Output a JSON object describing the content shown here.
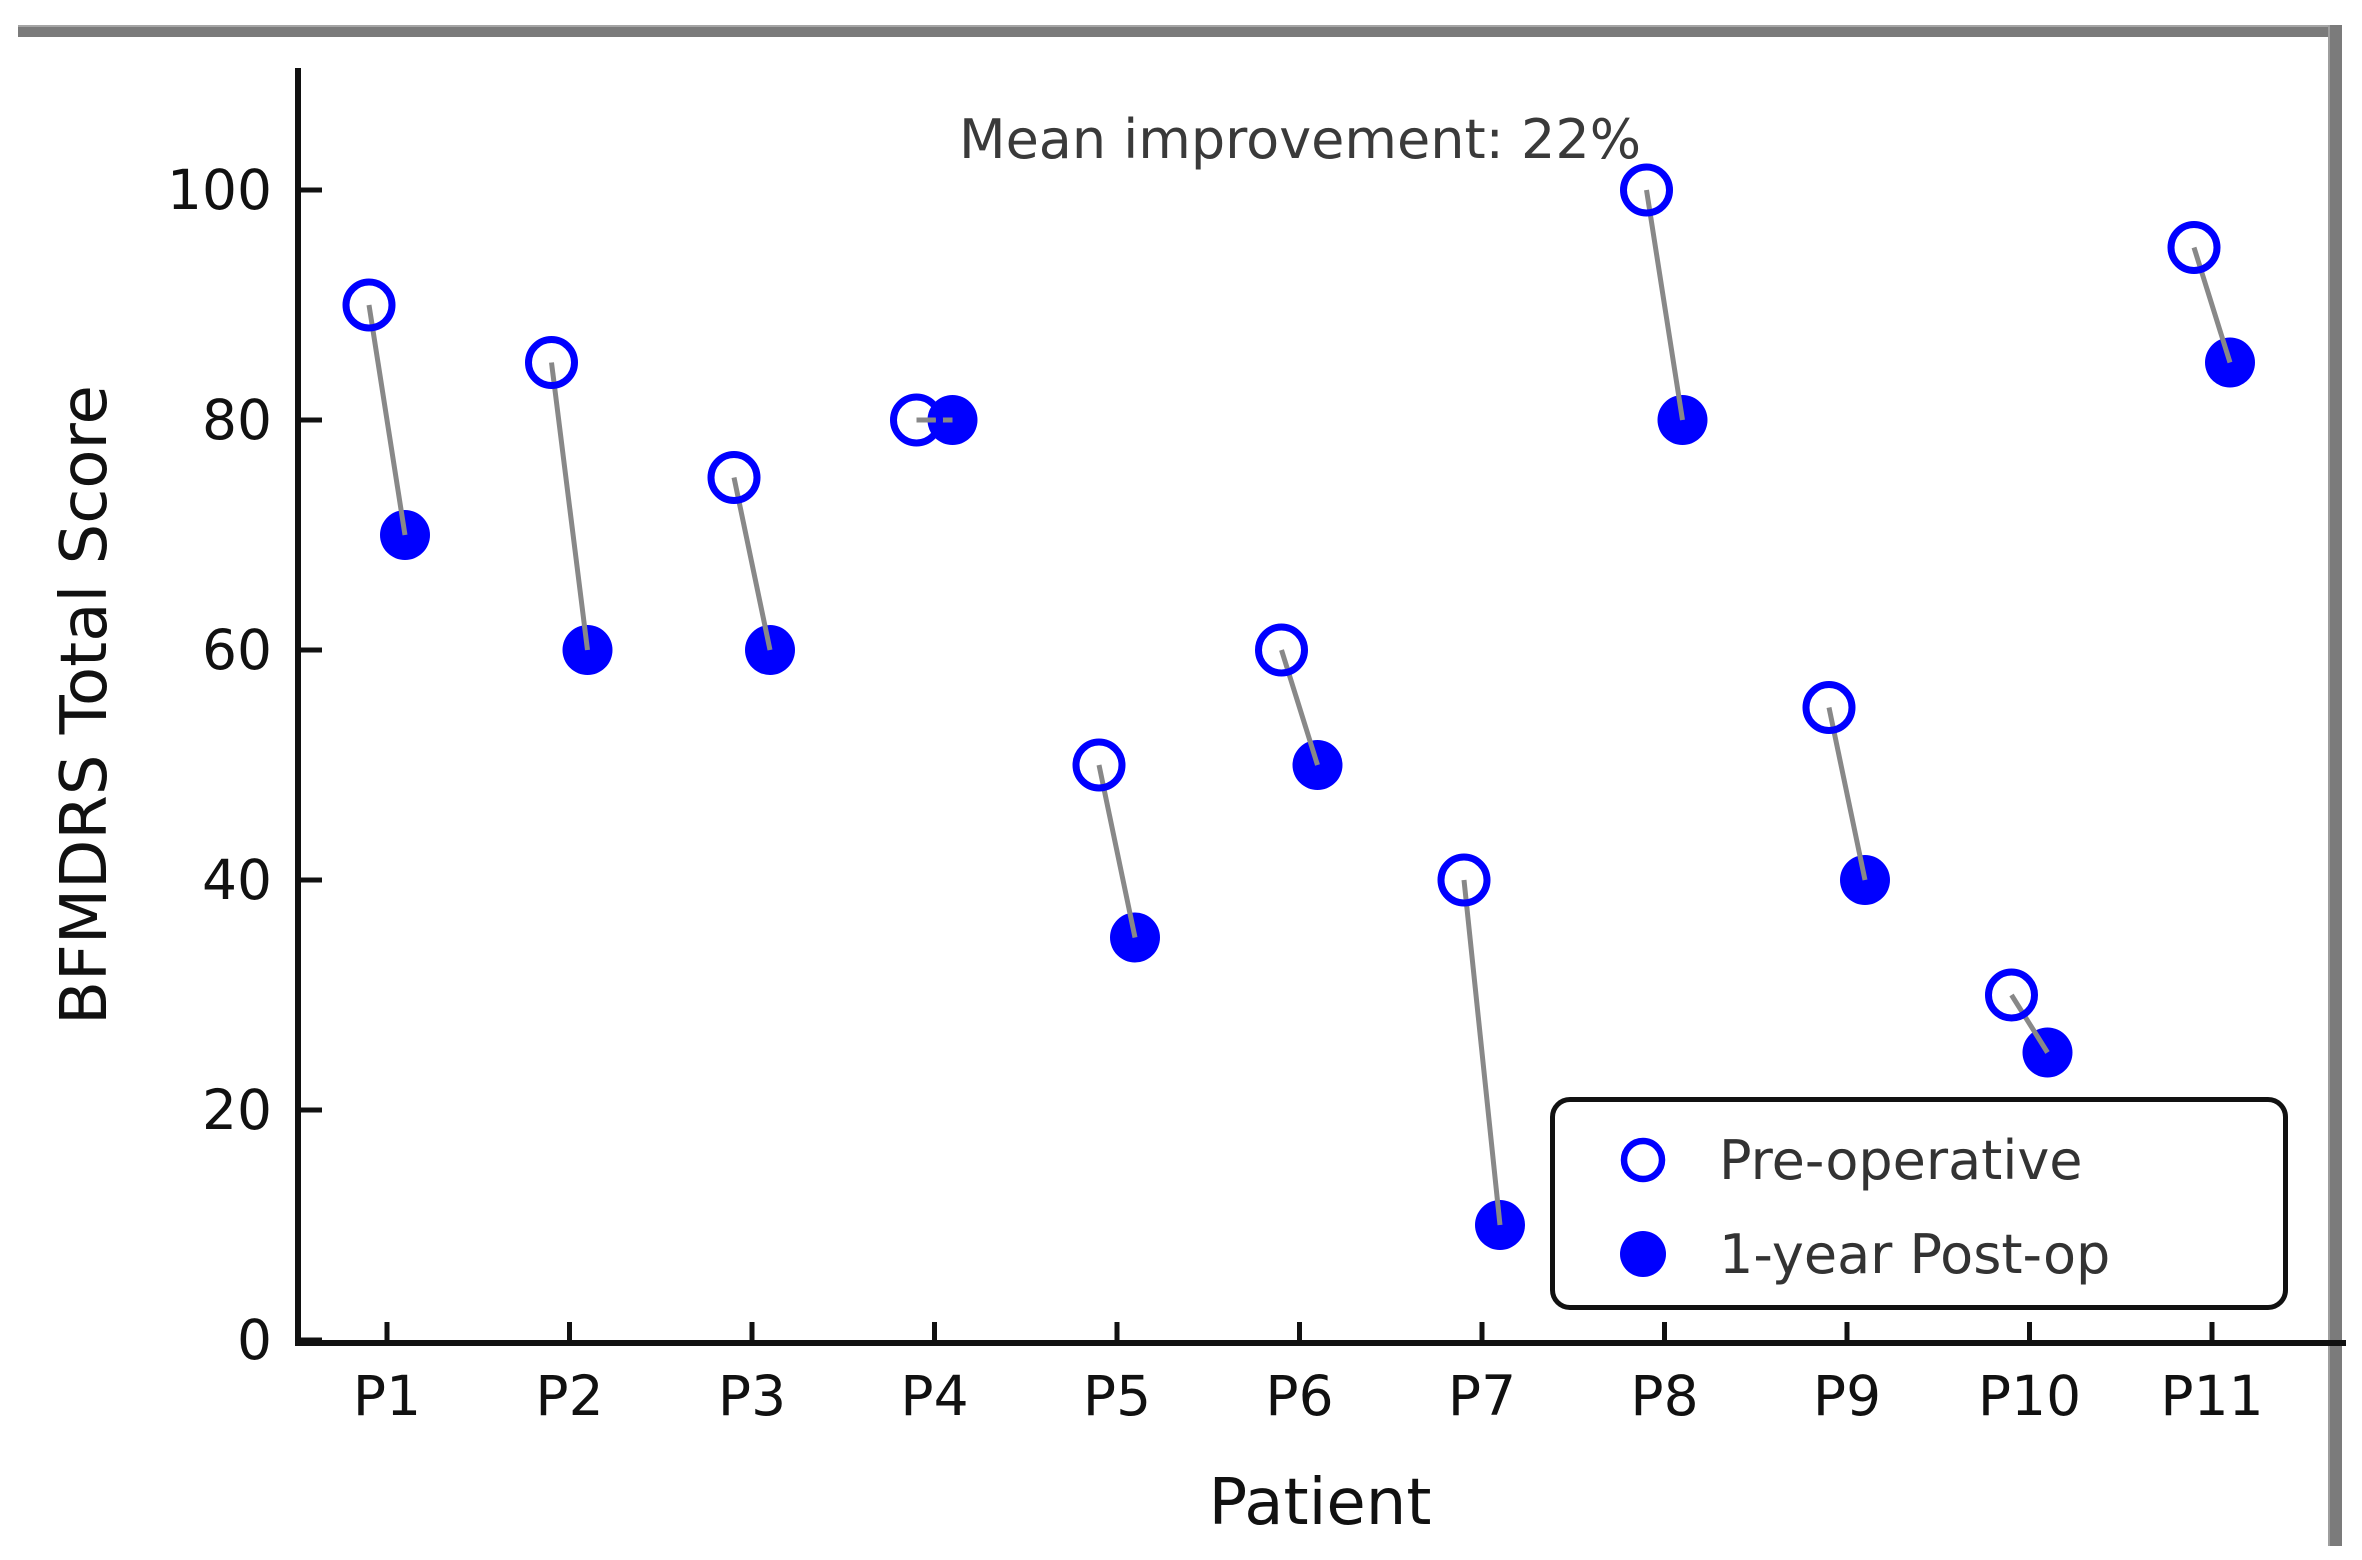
{
  "chart_data": {
    "type": "scatter",
    "subtype": "paired-dumbbell",
    "title": "Mean improvement: 22%",
    "xlabel": "Patient",
    "ylabel": "BFMDRS Total Score",
    "categories": [
      "P1",
      "P2",
      "P3",
      "P4",
      "P5",
      "P6",
      "P7",
      "P8",
      "P9",
      "P10",
      "P11"
    ],
    "yticks": [
      0,
      20,
      40,
      60,
      80,
      100
    ],
    "ytick_labels": [
      "0",
      "20",
      "40",
      "60",
      "80",
      "100"
    ],
    "ylim": [
      0,
      110
    ],
    "grid": false,
    "series": [
      {
        "name": "Pre-operative",
        "marker": "open-circle",
        "values": [
          90,
          85,
          75,
          80,
          50,
          60,
          40,
          100,
          55,
          30,
          95
        ]
      },
      {
        "name": "1-year Post-op",
        "marker": "filled-circle",
        "values": [
          70,
          60,
          60,
          80,
          35,
          50,
          10,
          80,
          40,
          25,
          85
        ]
      }
    ],
    "legend_position": "lower right",
    "colors": {
      "marker_blue": "#0000ff",
      "connector_gray": "#888888",
      "axis_black": "#111111",
      "frame_gray": "#7b7b7b",
      "title_text": "#3a3a3a"
    }
  }
}
